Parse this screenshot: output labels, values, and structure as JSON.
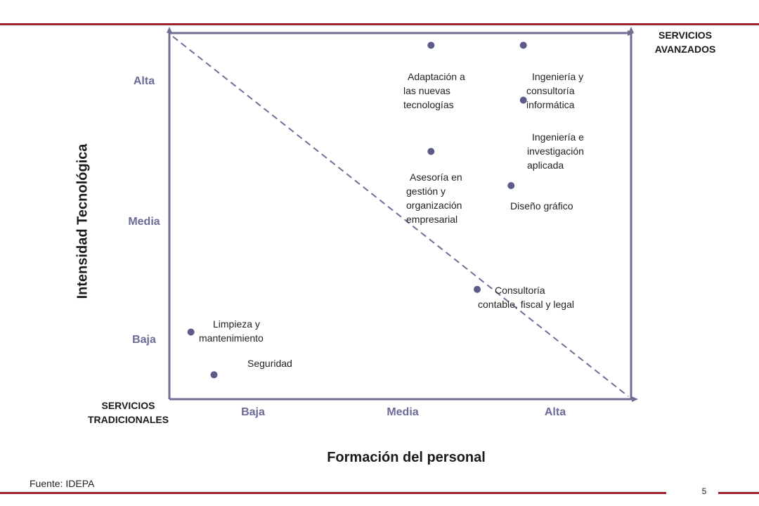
{
  "chart_data": {
    "type": "scatter",
    "xlabel": "Formación del personal",
    "ylabel": "Intensidad Tecnológica",
    "x_levels": [
      "Baja",
      "Media",
      "Alta"
    ],
    "y_levels": [
      "Alta",
      "Media",
      "Baja"
    ],
    "corner_top_right": [
      "SERVICIOS",
      "AVANZADOS"
    ],
    "corner_bottom_left": [
      "SERVICIOS",
      "TRADICIONALES"
    ],
    "points": [
      {
        "label_lines": [
          "Adaptación a",
          "las nuevas",
          "tecnologías"
        ],
        "x": 1.7,
        "y": 2.9
      },
      {
        "label_lines": [
          "Ingeniería y",
          "consultoría",
          "informática"
        ],
        "x": 2.3,
        "y": 2.9
      },
      {
        "label_lines": [
          "Ingeniería e",
          "investigación",
          "aplicada"
        ],
        "x": 2.3,
        "y": 2.45
      },
      {
        "label_lines": [
          "Asesoría en",
          "gestión y",
          "organización",
          "empresarial"
        ],
        "x": 1.7,
        "y": 2.03
      },
      {
        "label_lines": [
          "Diseño gráfico"
        ],
        "x": 2.22,
        "y": 1.75
      },
      {
        "label_lines": [
          "Consultoría",
          "contable, fiscal y legal"
        ],
        "x": 2.0,
        "y": 0.9
      },
      {
        "label_lines": [
          "Limpieza y",
          "mantenimiento"
        ],
        "x": 0.14,
        "y": 0.55
      },
      {
        "label_lines": [
          "Seguridad"
        ],
        "x": 0.29,
        "y": 0.2
      }
    ],
    "diagonal": "dashed"
  },
  "footer": {
    "source": "Fuente: IDEPA",
    "page_number": "5"
  },
  "colors": {
    "axis": "#6f6f96",
    "marker": "#5c5c8a",
    "rule": "#9b2330"
  }
}
